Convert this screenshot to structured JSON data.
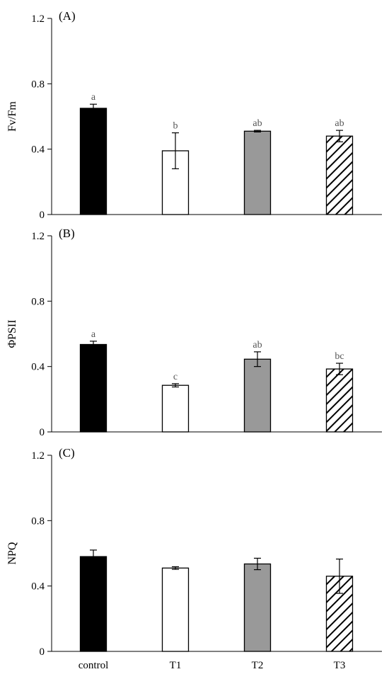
{
  "chart_data": [
    {
      "type": "bar",
      "panel_label": "(A)",
      "ylabel": "Fv/Fm",
      "ylim": [
        0,
        1.2
      ],
      "yticks": [
        "0",
        "0.4",
        "0.8",
        "1.2"
      ],
      "categories": [
        "control",
        "T1",
        "T2",
        "T3"
      ],
      "values": [
        0.65,
        0.39,
        0.51,
        0.48
      ],
      "errors": [
        0.025,
        0.11,
        0.005,
        0.035
      ],
      "significance": [
        "a",
        "b",
        "ab",
        "ab"
      ],
      "show_category_labels": false
    },
    {
      "type": "bar",
      "panel_label": "(B)",
      "ylabel": "ΦPSII",
      "ylim": [
        0,
        1.2
      ],
      "yticks": [
        "0",
        "0.4",
        "0.8",
        "1.2"
      ],
      "categories": [
        "control",
        "T1",
        "T2",
        "T3"
      ],
      "values": [
        0.535,
        0.285,
        0.445,
        0.385
      ],
      "errors": [
        0.02,
        0.01,
        0.045,
        0.035
      ],
      "significance": [
        "a",
        "c",
        "ab",
        "bc"
      ],
      "show_category_labels": false
    },
    {
      "type": "bar",
      "panel_label": "(C)",
      "ylabel": "NPQ",
      "ylim": [
        0,
        1.2
      ],
      "yticks": [
        "0",
        "0.4",
        "0.8",
        "1.2"
      ],
      "categories": [
        "control",
        "T1",
        "T2",
        "T3"
      ],
      "values": [
        0.58,
        0.51,
        0.535,
        0.46
      ],
      "errors": [
        0.04,
        0.008,
        0.035,
        0.105
      ],
      "significance": [
        "",
        "",
        "",
        ""
      ],
      "show_category_labels": true
    }
  ],
  "bar_styles": [
    {
      "fill": "#000000",
      "pattern": "none"
    },
    {
      "fill": "#ffffff",
      "pattern": "none"
    },
    {
      "fill": "#999999",
      "pattern": "none"
    },
    {
      "fill": "#ffffff",
      "pattern": "diagonal-hatch"
    }
  ]
}
